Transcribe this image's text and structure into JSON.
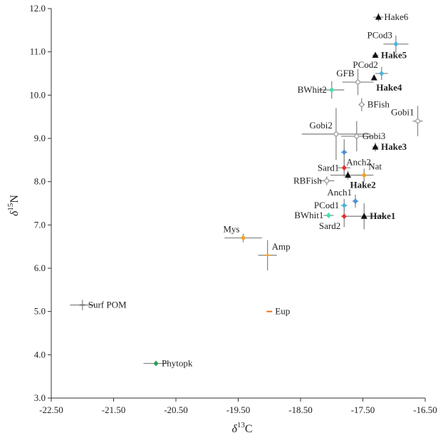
{
  "chart_data": {
    "type": "scatter",
    "title": "",
    "xlabel": {
      "prefix": "δ",
      "sup": "13",
      "main": "C"
    },
    "ylabel": {
      "prefix": "δ",
      "sup": "15",
      "main": "N"
    },
    "xlim": [
      -22.5,
      -16.5
    ],
    "ylim": [
      3.0,
      12.0
    ],
    "x_ticks": [
      -22.5,
      -21.5,
      -20.5,
      -19.5,
      -18.5,
      -17.5,
      -16.5
    ],
    "x_tick_labels": [
      "-22.50",
      "-21.50",
      "-20.50",
      "-19.50",
      "-18.50",
      "-17.50",
      "-16.50"
    ],
    "y_ticks": [
      3,
      4,
      5,
      6,
      7,
      8,
      9,
      10,
      11,
      12
    ],
    "y_tick_labels": [
      "3.0",
      "4.0",
      "5.0",
      "6.0",
      "7.0",
      "8.0",
      "9.0",
      "10.0",
      "11.0",
      "12.0"
    ],
    "grid": false,
    "points": [
      {
        "label": "Hake6",
        "x": -17.25,
        "y": 11.8,
        "xerr": 0.08,
        "yerr": 0.1,
        "marker": "triangle",
        "color": "#111111",
        "bold": false,
        "label_pos": "right"
      },
      {
        "label": "PCod3",
        "x": -16.97,
        "y": 11.18,
        "xerr": 0.2,
        "yerr": 0.2,
        "marker": "diamond",
        "color": "#4fb3d9",
        "bold": false,
        "label_pos": "left-up"
      },
      {
        "label": "Hake5",
        "x": -17.3,
        "y": 10.92,
        "xerr": 0.05,
        "yerr": 0.05,
        "marker": "triangle",
        "color": "#111111",
        "bold": true,
        "label_pos": "right"
      },
      {
        "label": "PCod2",
        "x": -17.2,
        "y": 10.5,
        "xerr": 0.1,
        "yerr": 0.15,
        "marker": "diamond",
        "color": "#4fb3d9",
        "bold": false,
        "label_pos": "left-up"
      },
      {
        "label": "Hake4",
        "x": -17.32,
        "y": 10.4,
        "xerr": 0.0,
        "yerr": 0.0,
        "marker": "triangle",
        "color": "#111111",
        "bold": true,
        "label_pos": "below-right"
      },
      {
        "label": "GFB",
        "x": -17.58,
        "y": 10.3,
        "xerr": 0.25,
        "yerr": 0.3,
        "marker": "circle",
        "color": "#999999",
        "bold": false,
        "label_pos": "left-up"
      },
      {
        "label": "BWhit2",
        "x": -18.0,
        "y": 10.12,
        "xerr": 0.2,
        "yerr": 0.2,
        "marker": "diamond",
        "color": "#3ee0a8",
        "bold": false,
        "label_pos": "left"
      },
      {
        "label": "BFish",
        "x": -17.52,
        "y": 9.78,
        "xerr": 0.05,
        "yerr": 0.15,
        "marker": "circle",
        "color": "#999999",
        "bold": false,
        "label_pos": "right"
      },
      {
        "label": "Gobi1",
        "x": -16.62,
        "y": 9.4,
        "xerr": 0.08,
        "yerr": 0.35,
        "marker": "circle",
        "color": "#999999",
        "bold": false,
        "label_pos": "left-up"
      },
      {
        "label": "Gobi2",
        "x": -17.93,
        "y": 9.1,
        "xerr": 0.55,
        "yerr": 0.6,
        "marker": "circle",
        "color": "#999999",
        "bold": false,
        "label_pos": "left-up"
      },
      {
        "label": "Gobi3",
        "x": -17.6,
        "y": 9.05,
        "xerr": 0.25,
        "yerr": 0.35,
        "marker": "circle",
        "color": "#999999",
        "bold": false,
        "label_pos": "right"
      },
      {
        "label": "Hake3",
        "x": -17.3,
        "y": 8.8,
        "xerr": 0.05,
        "yerr": 0.1,
        "marker": "triangle",
        "color": "#111111",
        "bold": true,
        "label_pos": "right"
      },
      {
        "label": "Anch2",
        "x": -17.8,
        "y": 8.68,
        "xerr": 0.05,
        "yerr": 0.3,
        "marker": "diamond",
        "color": "#4a90d9",
        "bold": false,
        "label_pos": "below-right"
      },
      {
        "label": "Sard1",
        "x": -17.8,
        "y": 8.32,
        "xerr": 0.1,
        "yerr": 0.2,
        "marker": "diamond",
        "color": "#e03030",
        "bold": false,
        "label_pos": "left"
      },
      {
        "label": "Nat",
        "x": -17.48,
        "y": 8.15,
        "xerr": 0.15,
        "yerr": 0.15,
        "marker": "diamond",
        "color": "#f0a020",
        "bold": false,
        "label_pos": "right-up"
      },
      {
        "label": "RBFish",
        "x": -18.08,
        "y": 8.02,
        "xerr": 0.12,
        "yerr": 0.1,
        "marker": "circle",
        "color": "#999999",
        "bold": false,
        "label_pos": "left"
      },
      {
        "label": "Hake2",
        "x": -17.74,
        "y": 8.15,
        "xerr": 0.28,
        "yerr": 0.1,
        "marker": "triangle",
        "color": "#111111",
        "bold": true,
        "label_pos": "below-right"
      },
      {
        "label": "Anch1",
        "x": -17.62,
        "y": 7.55,
        "xerr": 0.05,
        "yerr": 0.15,
        "marker": "diamond",
        "color": "#4a90d9",
        "bold": false,
        "label_pos": "left-up"
      },
      {
        "label": "PCod1",
        "x": -17.8,
        "y": 7.45,
        "xerr": 0.05,
        "yerr": 0.15,
        "marker": "diamond",
        "color": "#4fb3d9",
        "bold": false,
        "label_pos": "left"
      },
      {
        "label": "BWhit1",
        "x": -18.05,
        "y": 7.22,
        "xerr": 0.08,
        "yerr": 0.0,
        "marker": "diamond",
        "color": "#3ee0a8",
        "bold": false,
        "label_pos": "left"
      },
      {
        "label": "Sard2",
        "x": -17.8,
        "y": 7.2,
        "xerr": 0.05,
        "yerr": 0.25,
        "marker": "diamond",
        "color": "#e03030",
        "bold": false,
        "label_pos": "left-down"
      },
      {
        "label": "Hake1",
        "x": -17.48,
        "y": 7.2,
        "xerr": 0.35,
        "yerr": 0.3,
        "marker": "triangle",
        "color": "#111111",
        "bold": true,
        "label_pos": "right"
      },
      {
        "label": "Mys",
        "x": -19.42,
        "y": 6.7,
        "xerr": 0.3,
        "yerr": 0.1,
        "marker": "diamond",
        "color": "#f0a020",
        "bold": false,
        "label_pos": "left-up"
      },
      {
        "label": "Amp",
        "x": -19.03,
        "y": 6.3,
        "xerr": 0.15,
        "yerr": 0.35,
        "marker": "dash",
        "color": "#f0a020",
        "bold": false,
        "label_pos": "right-up"
      },
      {
        "label": "Surf POM",
        "x": -22.0,
        "y": 5.15,
        "xerr": 0.2,
        "yerr": 0.12,
        "marker": "dash",
        "color": "#777777",
        "bold": false,
        "label_pos": "right"
      },
      {
        "label": "Eup",
        "x": -19.0,
        "y": 5.0,
        "xerr": 0.0,
        "yerr": 0.0,
        "marker": "dash",
        "color": "#f07020",
        "bold": false,
        "label_pos": "right"
      },
      {
        "label": "Phytopk",
        "x": -20.82,
        "y": 3.8,
        "xerr": 0.2,
        "yerr": 0.0,
        "marker": "diamond",
        "color": "#2aa050",
        "bold": false,
        "label_pos": "right"
      }
    ]
  }
}
